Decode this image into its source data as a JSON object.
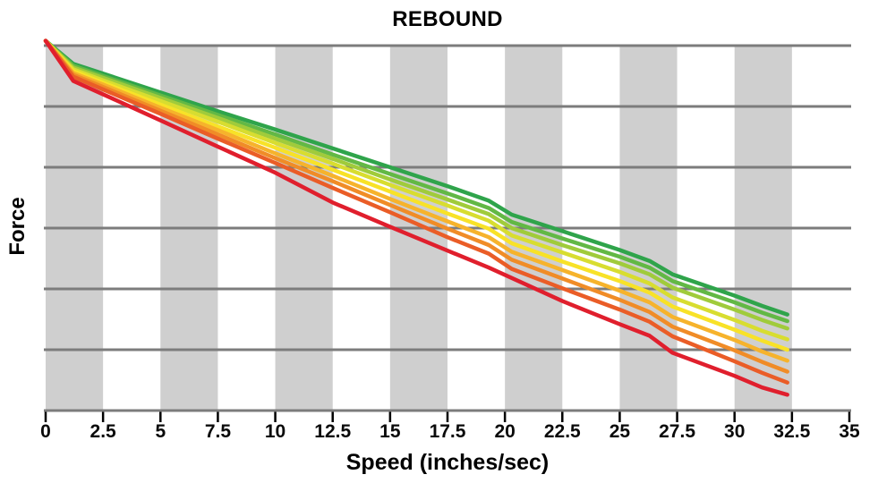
{
  "figure": {
    "background": "#FFFFFF"
  },
  "chart_data": {
    "type": "line",
    "title": "REBOUND",
    "xlabel": "Speed (inches/sec)",
    "ylabel": "Force",
    "xlim": [
      0,
      35
    ],
    "ylim": [
      0,
      6.2
    ],
    "grid": "horizontal-on",
    "legend": "none",
    "y_tick_labels_shown": false,
    "x_tick_values": [
      0,
      2.5,
      5,
      7.5,
      10,
      12.5,
      15,
      17.5,
      20,
      22.5,
      25,
      27.5,
      30,
      32.5,
      35
    ],
    "x_tick_labels": [
      "0",
      "2.5",
      "5",
      "7.5",
      "10",
      "12.5",
      "15",
      "17.5",
      "20",
      "22.5",
      "25",
      "27.5",
      "30",
      "32.5",
      "35"
    ],
    "y_gridline_values": [
      0,
      1,
      2,
      3,
      4,
      5,
      6
    ],
    "band_regions": [
      [
        0,
        2.5
      ],
      [
        5,
        7.5
      ],
      [
        10,
        12.5
      ],
      [
        15,
        17.5
      ],
      [
        20,
        22.5
      ],
      [
        25,
        27.5
      ],
      [
        30,
        32.5
      ]
    ],
    "colors": {
      "band": "#CFCFCF",
      "grid": "#7C7C7C",
      "tick": "#000000",
      "text": "#000000"
    },
    "speeds": [
      0,
      1.2,
      2.5,
      5,
      7.5,
      10,
      12.5,
      15,
      17.5,
      19.3,
      20.3,
      22.5,
      25,
      26.3,
      27.3,
      30,
      31.2,
      32.3
    ],
    "series": [
      {
        "name": "green",
        "color": "#2FA44B",
        "values": [
          6.08,
          5.7,
          5.54,
          5.23,
          4.92,
          4.62,
          4.31,
          4.0,
          3.69,
          3.45,
          3.22,
          2.95,
          2.64,
          2.46,
          2.24,
          1.89,
          1.72,
          1.58
        ]
      },
      {
        "name": "light-green",
        "color": "#62B845",
        "values": [
          6.08,
          5.67,
          5.5,
          5.18,
          4.86,
          4.54,
          4.21,
          3.89,
          3.57,
          3.33,
          3.1,
          2.83,
          2.53,
          2.35,
          2.13,
          1.78,
          1.61,
          1.47
        ]
      },
      {
        "name": "lime",
        "color": "#A0CB3B",
        "values": [
          6.08,
          5.64,
          5.47,
          5.14,
          4.81,
          4.47,
          4.14,
          3.8,
          3.47,
          3.23,
          3.0,
          2.72,
          2.42,
          2.24,
          2.02,
          1.66,
          1.49,
          1.35
        ]
      },
      {
        "name": "yellow-green",
        "color": "#D8DD30",
        "values": [
          6.08,
          5.61,
          5.43,
          5.09,
          4.75,
          4.4,
          4.06,
          3.71,
          3.37,
          3.12,
          2.88,
          2.6,
          2.28,
          2.09,
          1.86,
          1.49,
          1.31,
          1.17
        ]
      },
      {
        "name": "yellow",
        "color": "#F8E228",
        "values": [
          6.08,
          5.58,
          5.39,
          5.03,
          4.67,
          4.32,
          3.96,
          3.6,
          3.24,
          2.99,
          2.75,
          2.45,
          2.13,
          1.94,
          1.71,
          1.33,
          1.15,
          1.0
        ]
      },
      {
        "name": "amber",
        "color": "#F6B32C",
        "values": [
          6.08,
          5.55,
          5.36,
          4.98,
          4.61,
          4.23,
          3.86,
          3.48,
          3.11,
          2.85,
          2.61,
          2.31,
          1.97,
          1.78,
          1.54,
          1.16,
          0.97,
          0.82
        ]
      },
      {
        "name": "orange",
        "color": "#F08C27",
        "values": [
          6.08,
          5.52,
          5.32,
          4.93,
          4.54,
          4.15,
          3.77,
          3.38,
          2.99,
          2.72,
          2.48,
          2.17,
          1.82,
          1.62,
          1.38,
          0.99,
          0.8,
          0.64
        ]
      },
      {
        "name": "dark-orange",
        "color": "#EA5D27",
        "values": [
          6.08,
          5.49,
          5.28,
          4.88,
          4.47,
          4.07,
          3.66,
          3.26,
          2.85,
          2.58,
          2.33,
          2.01,
          1.66,
          1.46,
          1.22,
          0.81,
          0.62,
          0.46
        ]
      },
      {
        "name": "red",
        "color": "#E01F2D",
        "values": [
          6.08,
          5.42,
          5.2,
          4.77,
          4.34,
          3.91,
          3.42,
          3.02,
          2.63,
          2.35,
          2.18,
          1.8,
          1.42,
          1.23,
          0.95,
          0.57,
          0.38,
          0.26
        ]
      }
    ]
  }
}
